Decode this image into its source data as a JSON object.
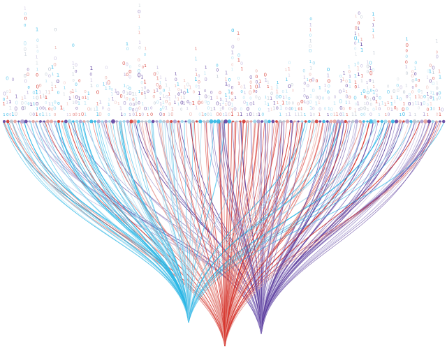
{
  "canvas": {
    "background": "#ffffff"
  },
  "palette": {
    "cyan": "#29b6e6",
    "cyan_light": "#9ad7ef",
    "red": "#d6342c",
    "red_light": "#e8a09a",
    "purple": "#5a3a9c",
    "purple_light": "#a89bd0",
    "gray": "#b9c3cf"
  },
  "groups": [
    {
      "name": "",
      "color_key": "cyan"
    },
    {
      "name": "",
      "color_key": "red"
    },
    {
      "name": "",
      "color_key": "purple"
    }
  ],
  "glyph_chars": [
    "0",
    "1"
  ]
}
